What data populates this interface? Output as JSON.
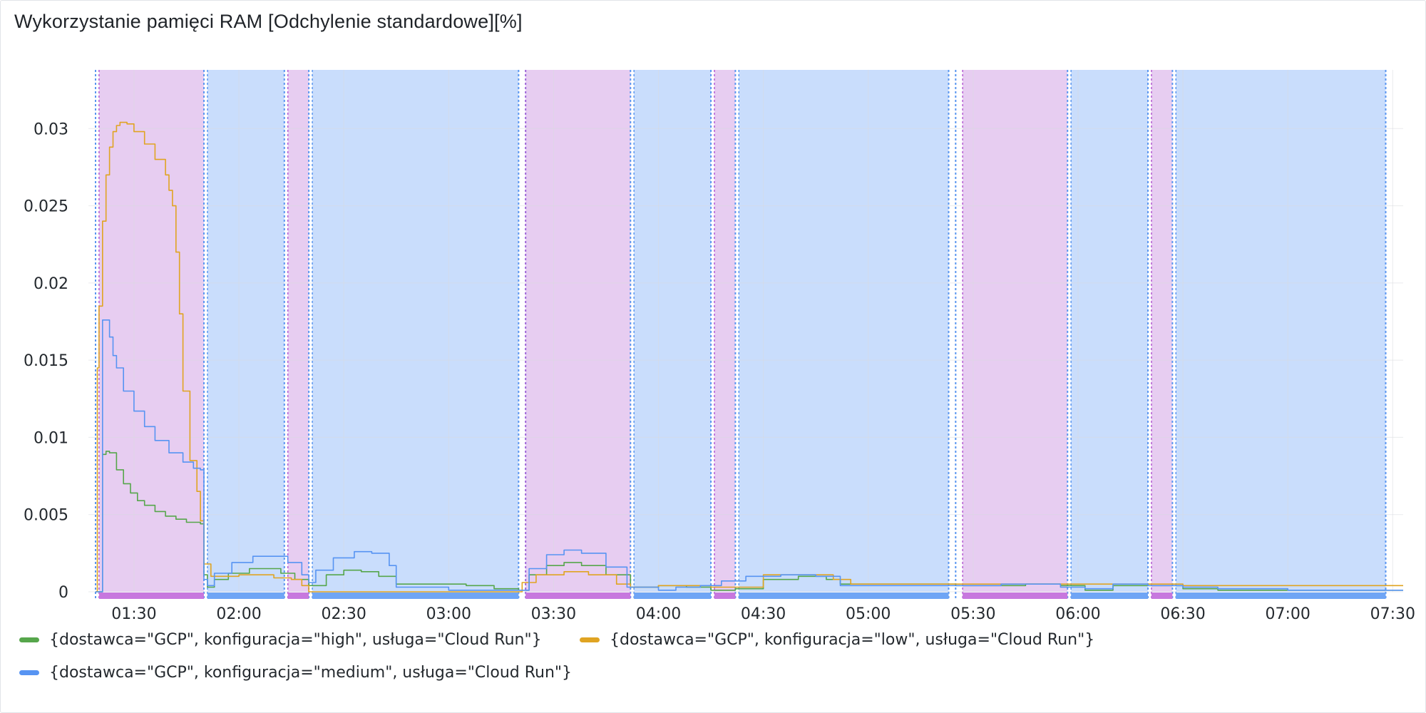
{
  "panel": {
    "title": "Wykorzystanie pamięci RAM [Odchylenie standardowe][%]"
  },
  "chart_data": {
    "type": "line",
    "title": "Wykorzystanie pamięci RAM [Odchylenie standardowe][%]",
    "xlabel": "",
    "ylabel": "",
    "x_range": [
      "01:19",
      "07:33"
    ],
    "ylim": [
      0,
      0.0338
    ],
    "y_ticks": [
      "0",
      "0.005",
      "0.01",
      "0.015",
      "0.02",
      "0.025",
      "0.03"
    ],
    "y_tick_values": [
      0,
      0.005,
      0.01,
      0.015,
      0.02,
      0.025,
      0.03
    ],
    "x_ticks": [
      "01:30",
      "02:00",
      "02:30",
      "03:00",
      "03:30",
      "04:00",
      "04:30",
      "05:00",
      "05:30",
      "06:00",
      "06:30",
      "07:00",
      "07:30"
    ],
    "grid": true,
    "legend_position": "bottom",
    "annotation_colors": {
      "purple": "#d9aee8",
      "blue": "#a8c8fa"
    },
    "annotation_regions": [
      {
        "from": "01:20",
        "to": "01:50",
        "color": "purple"
      },
      {
        "from": "01:51",
        "to": "02:13",
        "color": "blue"
      },
      {
        "from": "02:14",
        "to": "02:20",
        "color": "purple"
      },
      {
        "from": "02:21",
        "to": "03:20",
        "color": "blue"
      },
      {
        "from": "03:22",
        "to": "03:52",
        "color": "purple"
      },
      {
        "from": "03:53",
        "to": "04:15",
        "color": "blue"
      },
      {
        "from": "04:16",
        "to": "04:22",
        "color": "purple"
      },
      {
        "from": "04:23",
        "to": "05:23",
        "color": "blue"
      },
      {
        "from": "05:27",
        "to": "05:57",
        "color": "purple"
      },
      {
        "from": "05:58",
        "to": "06:20",
        "color": "blue"
      },
      {
        "from": "06:21",
        "to": "06:27",
        "color": "purple"
      },
      {
        "from": "06:28",
        "to": "07:28",
        "color": "blue"
      }
    ],
    "annotation_markers": [
      "01:19",
      "01:50",
      "02:13",
      "02:20",
      "03:20",
      "03:22",
      "03:52",
      "04:15",
      "04:22",
      "05:23",
      "05:25",
      "05:57",
      "06:20",
      "06:27",
      "07:28"
    ],
    "series": [
      {
        "name": "{dostawca=\"GCP\", konfiguracja=\"high\", usługa=\"Cloud Run\"}",
        "color": "#56a64b",
        "points": [
          [
            "01:19",
            0
          ],
          [
            "01:20",
            0
          ],
          [
            "01:21",
            0.0089
          ],
          [
            "01:22",
            0.0091
          ],
          [
            "01:23",
            0.009
          ],
          [
            "01:25",
            0.0079
          ],
          [
            "01:27",
            0.007
          ],
          [
            "01:29",
            0.0064
          ],
          [
            "01:31",
            0.0059
          ],
          [
            "01:33",
            0.0056
          ],
          [
            "01:36",
            0.0052
          ],
          [
            "01:39",
            0.0049
          ],
          [
            "01:42",
            0.0047
          ],
          [
            "01:45",
            0.0045
          ],
          [
            "01:49",
            0.0044
          ],
          [
            "01:50",
            0.0011
          ],
          [
            "01:51",
            0.0003
          ],
          [
            "01:53",
            0.0008
          ],
          [
            "01:57",
            0.0012
          ],
          [
            "02:03",
            0.0015
          ],
          [
            "02:08",
            0.0015
          ],
          [
            "02:12",
            0.0012
          ],
          [
            "02:16",
            0.0008
          ],
          [
            "02:20",
            0.0004
          ],
          [
            "02:25",
            0.0011
          ],
          [
            "02:30",
            0.0014
          ],
          [
            "02:35",
            0.0013
          ],
          [
            "02:40",
            0.001
          ],
          [
            "02:45",
            0.0005
          ],
          [
            "02:55",
            0.0005
          ],
          [
            "03:05",
            0.0004
          ],
          [
            "03:13",
            0.0002
          ],
          [
            "03:20",
            0.0001
          ],
          [
            "03:23",
            0.0011
          ],
          [
            "03:28",
            0.0017
          ],
          [
            "03:33",
            0.0019
          ],
          [
            "03:38",
            0.0017
          ],
          [
            "03:45",
            0.0011
          ],
          [
            "03:52",
            0.0003
          ],
          [
            "04:00",
            0.0004
          ],
          [
            "04:08",
            0.0003
          ],
          [
            "04:15",
            0.0001
          ],
          [
            "04:22",
            0.0002
          ],
          [
            "04:30",
            0.0008
          ],
          [
            "04:40",
            0.001
          ],
          [
            "04:48",
            0.0008
          ],
          [
            "04:52",
            0.0005
          ],
          [
            "05:00",
            0.0005
          ],
          [
            "05:10",
            0.0005
          ],
          [
            "05:25",
            0.0004
          ],
          [
            "05:35",
            0.0004
          ],
          [
            "05:45",
            0.0005
          ],
          [
            "05:55",
            0.0004
          ],
          [
            "06:02",
            0.0001
          ],
          [
            "06:10",
            0.0004
          ],
          [
            "06:20",
            0.0004
          ],
          [
            "06:30",
            0.0002
          ],
          [
            "06:40",
            0.0001
          ],
          [
            "06:50",
            0.0001
          ],
          [
            "07:10",
            0.0001
          ],
          [
            "07:33",
            0.0001
          ]
        ]
      },
      {
        "name": "{dostawca=\"GCP\", konfiguracja=\"low\", usługa=\"Cloud Run\"}",
        "color": "#e0a422",
        "points": [
          [
            "01:19",
            0
          ],
          [
            "01:19.5",
            0.0145
          ],
          [
            "01:20",
            0.0185
          ],
          [
            "01:21",
            0.024
          ],
          [
            "01:22",
            0.027
          ],
          [
            "01:23",
            0.0288
          ],
          [
            "01:24",
            0.0298
          ],
          [
            "01:25",
            0.0302
          ],
          [
            "01:26",
            0.0304
          ],
          [
            "01:27",
            0.0304
          ],
          [
            "01:28",
            0.0303
          ],
          [
            "01:30",
            0.0298
          ],
          [
            "01:33",
            0.029
          ],
          [
            "01:36",
            0.028
          ],
          [
            "01:39",
            0.027
          ],
          [
            "01:40",
            0.026
          ],
          [
            "01:41",
            0.025
          ],
          [
            "01:42",
            0.022
          ],
          [
            "01:43",
            0.018
          ],
          [
            "01:44",
            0.013
          ],
          [
            "01:46",
            0.0085
          ],
          [
            "01:48",
            0.0065
          ],
          [
            "01:49",
            0.0046
          ],
          [
            "01:50",
            0.0018
          ],
          [
            "01:52",
            0.001
          ],
          [
            "02:00",
            0.0011
          ],
          [
            "02:10",
            0.0009
          ],
          [
            "02:15",
            0.0008
          ],
          [
            "02:18",
            0.0004
          ],
          [
            "02:20",
            0
          ],
          [
            "02:40",
            0
          ],
          [
            "03:00",
            0
          ],
          [
            "03:19",
            0
          ],
          [
            "03:21",
            0.0006
          ],
          [
            "03:25",
            0.0011
          ],
          [
            "03:33",
            0.0013
          ],
          [
            "03:40",
            0.0011
          ],
          [
            "03:48",
            0.0005
          ],
          [
            "03:52",
            0.0003
          ],
          [
            "04:00",
            0.0004
          ],
          [
            "04:10",
            0.0004
          ],
          [
            "04:15",
            0.0003
          ],
          [
            "04:22",
            0.0003
          ],
          [
            "04:30",
            0.0011
          ],
          [
            "04:40",
            0.0011
          ],
          [
            "04:50",
            0.0008
          ],
          [
            "04:55",
            0.0005
          ],
          [
            "05:10",
            0.0005
          ],
          [
            "05:20",
            0.0005
          ],
          [
            "05:30",
            0.0005
          ],
          [
            "06:00",
            0.0005
          ],
          [
            "06:30",
            0.0004
          ],
          [
            "07:00",
            0.0004
          ],
          [
            "07:30",
            0.0004
          ],
          [
            "07:33",
            0.0004
          ]
        ]
      },
      {
        "name": "{dostawca=\"GCP\", konfiguracja=\"medium\", usługa=\"Cloud Run\"}",
        "color": "#5794f2",
        "points": [
          [
            "01:19",
            0
          ],
          [
            "01:20",
            0
          ],
          [
            "01:21",
            0.0176
          ],
          [
            "01:22",
            0.0176
          ],
          [
            "01:23",
            0.0165
          ],
          [
            "01:24",
            0.0153
          ],
          [
            "01:25",
            0.0145
          ],
          [
            "01:27",
            0.013
          ],
          [
            "01:30",
            0.0117
          ],
          [
            "01:33",
            0.0107
          ],
          [
            "01:36",
            0.0098
          ],
          [
            "01:40",
            0.009
          ],
          [
            "01:44",
            0.0084
          ],
          [
            "01:47",
            0.008
          ],
          [
            "01:49",
            0.0079
          ],
          [
            "01:50",
            0.0008
          ],
          [
            "01:51",
            0.0004
          ],
          [
            "01:53",
            0.0012
          ],
          [
            "01:58",
            0.0019
          ],
          [
            "02:04",
            0.0023
          ],
          [
            "02:09",
            0.0023
          ],
          [
            "02:14",
            0.0019
          ],
          [
            "02:18",
            0.0011
          ],
          [
            "02:20",
            0.0006
          ],
          [
            "02:22",
            0.0014
          ],
          [
            "02:27",
            0.0022
          ],
          [
            "02:33",
            0.0026
          ],
          [
            "02:38",
            0.0025
          ],
          [
            "02:43",
            0.0017
          ],
          [
            "02:45",
            0.0003
          ],
          [
            "03:00",
            0.0001
          ],
          [
            "03:15",
            0.0001
          ],
          [
            "03:20",
            0.0001
          ],
          [
            "03:23",
            0.0015
          ],
          [
            "03:28",
            0.0024
          ],
          [
            "03:33",
            0.0027
          ],
          [
            "03:38",
            0.0025
          ],
          [
            "03:45",
            0.0016
          ],
          [
            "03:51",
            0.0003
          ],
          [
            "04:00",
            0.0001
          ],
          [
            "04:05",
            0.0003
          ],
          [
            "04:12",
            0.0004
          ],
          [
            "04:18",
            0.0007
          ],
          [
            "04:25",
            0.001
          ],
          [
            "04:35",
            0.0011
          ],
          [
            "04:45",
            0.001
          ],
          [
            "04:52",
            0.0004
          ],
          [
            "05:00",
            0.0004
          ],
          [
            "05:10",
            0.0004
          ],
          [
            "05:28",
            0.0004
          ],
          [
            "05:38",
            0.0005
          ],
          [
            "05:45",
            0.0005
          ],
          [
            "05:55",
            0.0003
          ],
          [
            "06:02",
            0.0002
          ],
          [
            "06:10",
            0.0005
          ],
          [
            "06:20",
            0.0004
          ],
          [
            "06:30",
            0.0003
          ],
          [
            "06:40",
            0.0002
          ],
          [
            "07:00",
            0.0001
          ],
          [
            "07:33",
            0.0001
          ]
        ]
      }
    ]
  }
}
